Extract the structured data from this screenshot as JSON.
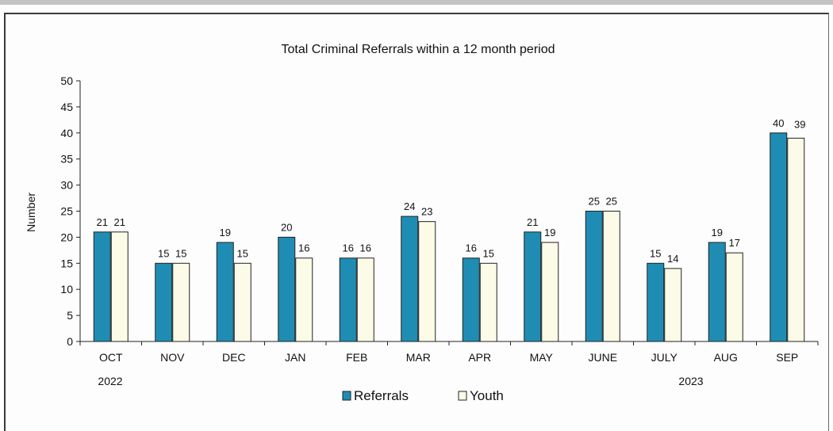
{
  "chart_data": {
    "type": "bar",
    "title": "Total Criminal Referrals within a 12 month period",
    "ylabel": "Number",
    "xlabel": "",
    "ylim": [
      0,
      50
    ],
    "yticks": [
      "0",
      "5",
      "10",
      "15",
      "20",
      "25",
      "30",
      "35",
      "40",
      "45",
      "50"
    ],
    "categories": [
      "OCT",
      "NOV",
      "DEC",
      "JAN",
      "FEB",
      "MAR",
      "APR",
      "MAY",
      "JUNE",
      "JULY",
      "AUG",
      "SEP"
    ],
    "year_labels": {
      "start": "2022",
      "end": "2023"
    },
    "series": [
      {
        "name": "Referrals",
        "color": "#1f8db3",
        "values": [
          21,
          15,
          19,
          20,
          16,
          24,
          16,
          21,
          25,
          15,
          19,
          40
        ]
      },
      {
        "name": "Youth",
        "color": "#fcfbe8",
        "values": [
          21,
          15,
          15,
          16,
          16,
          23,
          15,
          19,
          25,
          14,
          17,
          39
        ]
      }
    ],
    "legend_position": "bottom-center",
    "grid": false
  }
}
